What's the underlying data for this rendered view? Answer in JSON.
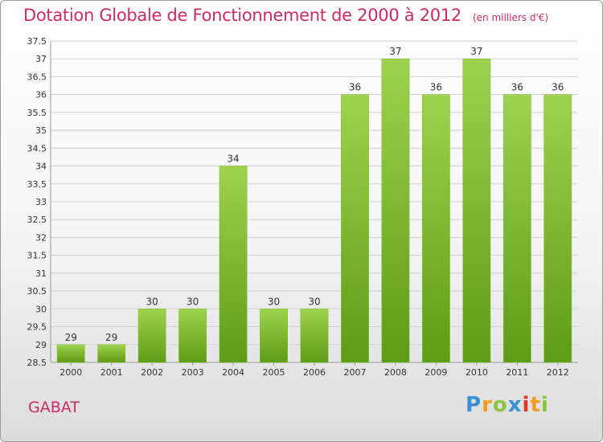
{
  "header": {
    "title": "Dotation Globale de Fonctionnement de 2000 à 2012",
    "unit": "(en milliers d'€)"
  },
  "footer": {
    "city": "GABAT",
    "logo": [
      "P",
      "r",
      "o",
      "x",
      "i",
      "t",
      "i"
    ]
  },
  "colors": {
    "title": "#cc2a66",
    "bar_top": "#9fd24f",
    "bar_bottom": "#5e9b16",
    "grid": "#d0d0d0",
    "axis_text": "#333333"
  },
  "chart_data": {
    "type": "bar",
    "categories": [
      "2000",
      "2001",
      "2002",
      "2003",
      "2004",
      "2005",
      "2006",
      "2007",
      "2008",
      "2009",
      "2010",
      "2011",
      "2012"
    ],
    "values": [
      29,
      29,
      30,
      30,
      34,
      30,
      30,
      36,
      37,
      36,
      37,
      36,
      36
    ],
    "title": "Dotation Globale de Fonctionnement de 2000 à 2012",
    "xlabel": "",
    "ylabel": "",
    "ylim": [
      28.5,
      37.5
    ],
    "yticks": [
      "28.5",
      "29",
      "29.5",
      "30",
      "30.5",
      "31",
      "31.5",
      "32",
      "32.5",
      "33",
      "33.5",
      "34",
      "34.5",
      "35",
      "35.5",
      "36",
      "36.5",
      "37",
      "37.5"
    ],
    "grid": true,
    "legend": "none"
  }
}
